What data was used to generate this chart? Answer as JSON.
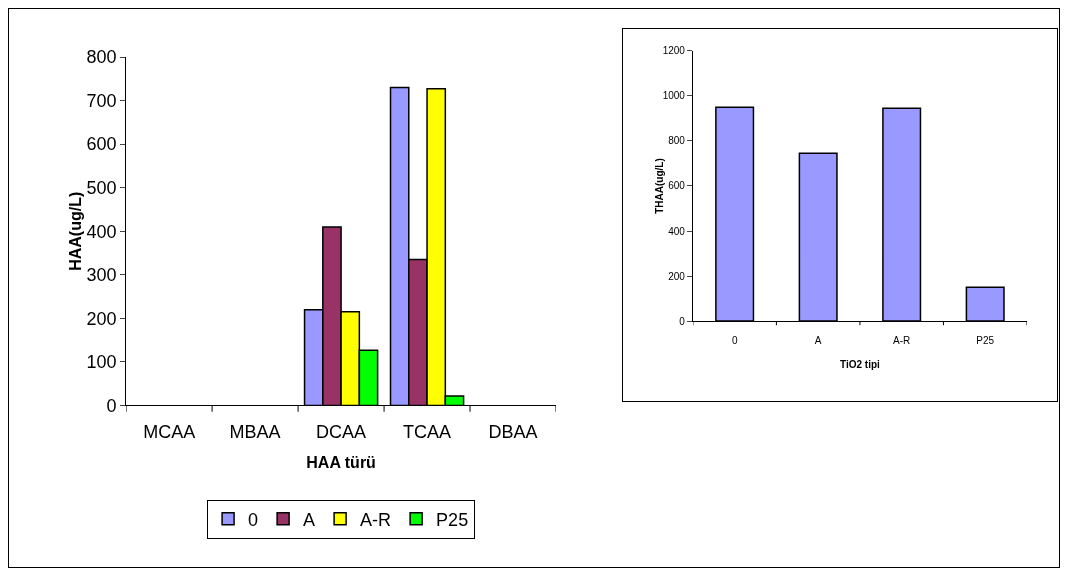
{
  "chart_data": [
    {
      "type": "bar",
      "xlabel": "HAA türü",
      "ylabel": "HAA(ug/L)",
      "categories": [
        "MCAA",
        "MBAA",
        "DCAA",
        "TCAA",
        "DBAA"
      ],
      "series": [
        {
          "name": "0",
          "color": "#9999ff",
          "values": [
            null,
            null,
            220,
            730,
            null
          ]
        },
        {
          "name": "A",
          "color": "#993366",
          "values": [
            null,
            null,
            410,
            335,
            null
          ]
        },
        {
          "name": "A-R",
          "color": "#ffff00",
          "values": [
            null,
            null,
            215,
            727,
            null
          ]
        },
        {
          "name": "P25",
          "color": "#00ff00",
          "values": [
            null,
            null,
            127,
            22,
            null
          ]
        }
      ],
      "ylim": [
        0,
        800
      ],
      "yticks": [
        0,
        100,
        200,
        300,
        400,
        500,
        600,
        700,
        800
      ],
      "grid": false,
      "legend": "bottom"
    },
    {
      "type": "bar",
      "xlabel": "TiO2 tipi",
      "ylabel": "THAA(ug/L)",
      "categories": [
        "0",
        "A",
        "A-R",
        "P25"
      ],
      "series": [
        {
          "color": "#9999ff",
          "values": [
            950,
            745,
            945,
            150
          ]
        }
      ],
      "ylim": [
        0,
        1200
      ],
      "yticks": [
        0,
        200,
        400,
        600,
        800,
        1000,
        1200
      ],
      "grid": false,
      "legend": false
    }
  ]
}
